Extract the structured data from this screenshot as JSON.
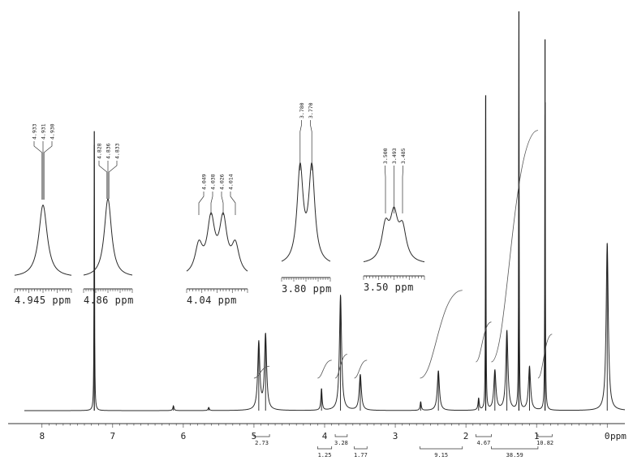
{
  "chart_data": {
    "type": "line",
    "title": "",
    "xlabel": "ppm",
    "ylabel": "",
    "xlim": [
      8.25,
      -0.25
    ],
    "x_ticks": [
      "8",
      "7",
      "6",
      "5",
      "4",
      "3",
      "2",
      "1",
      "0"
    ],
    "x_unit": "ppm",
    "peaks": [
      {
        "ppm": 7.26,
        "height": 0.7
      },
      {
        "ppm": 6.14,
        "height": 0.012
      },
      {
        "ppm": 5.64,
        "height": 0.008
      },
      {
        "ppm": 4.932,
        "height": 0.17
      },
      {
        "ppm": 4.836,
        "height": 0.19
      },
      {
        "ppm": 4.044,
        "height": 0.055
      },
      {
        "ppm": 3.775,
        "height": 0.29
      },
      {
        "ppm": 3.495,
        "height": 0.09
      },
      {
        "ppm": 2.64,
        "height": 0.022
      },
      {
        "ppm": 2.39,
        "height": 0.1
      },
      {
        "ppm": 1.82,
        "height": 0.03
      },
      {
        "ppm": 1.72,
        "height": 0.79
      },
      {
        "ppm": 1.59,
        "height": 0.1
      },
      {
        "ppm": 1.42,
        "height": 0.2
      },
      {
        "ppm": 1.25,
        "height": 1.0
      },
      {
        "ppm": 1.1,
        "height": 0.11
      },
      {
        "ppm": 0.88,
        "height": 0.93
      },
      {
        "ppm": 0.0,
        "height": 0.42
      }
    ],
    "integrals": [
      {
        "from": 5.0,
        "to": 4.78,
        "label": "2.73",
        "rise": 0.03
      },
      {
        "from": 4.1,
        "to": 3.9,
        "label": "1.25",
        "rise": 0.045
      },
      {
        "from": 3.85,
        "to": 3.68,
        "label": "3.28",
        "rise": 0.06
      },
      {
        "from": 3.58,
        "to": 3.4,
        "label": "1.77",
        "rise": 0.045
      },
      {
        "from": 2.65,
        "to": 2.05,
        "label": "9.15",
        "rise": 0.22
      },
      {
        "from": 1.86,
        "to": 1.64,
        "label": "4.67",
        "rise": 0.1
      },
      {
        "from": 1.64,
        "to": 0.98,
        "label": "38.59",
        "rise": 0.58
      },
      {
        "from": 0.98,
        "to": 0.78,
        "label": "10.82",
        "rise": 0.11
      }
    ],
    "insets": [
      {
        "axis_label": "4.945 ppm",
        "peak_labels": [
          "4.933",
          "4.931",
          "4.930"
        ],
        "shape": "single"
      },
      {
        "axis_label": "4.86 ppm",
        "peak_labels": [
          "4.828",
          "4.836",
          "4.833"
        ],
        "shape": "single"
      },
      {
        "axis_label": "4.04 ppm",
        "peak_labels": [
          "4.049",
          "4.038",
          "4.026",
          "4.014"
        ],
        "shape": "quartet"
      },
      {
        "axis_label": "3.80 ppm",
        "peak_labels": [
          "3.780",
          "3.770"
        ],
        "shape": "doublet"
      },
      {
        "axis_label": "3.50 ppm",
        "peak_labels": [
          "3.500",
          "3.493",
          "3.485"
        ],
        "shape": "triplet"
      }
    ]
  }
}
